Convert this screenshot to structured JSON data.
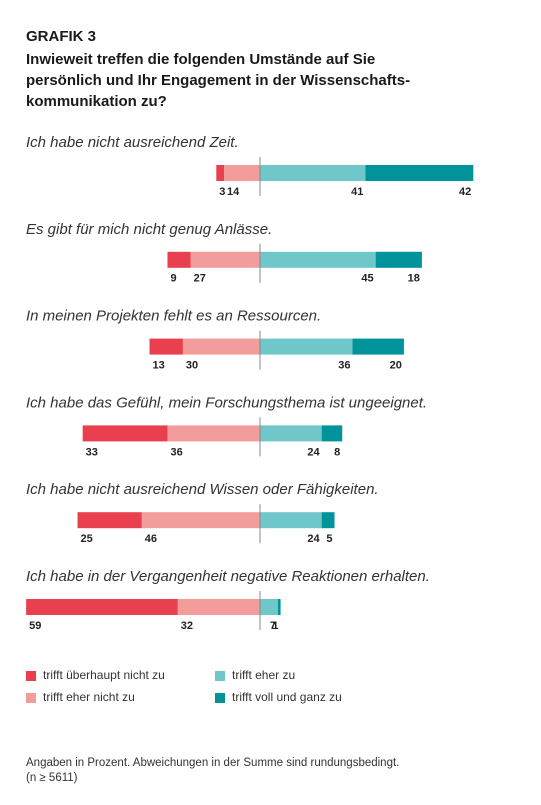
{
  "chart_data": {
    "type": "diverging_bar",
    "label": "GRAFIK 3",
    "title_lines": [
      "Inwieweit treffen die folgenden Umstände auf Sie",
      "persönlich und Ihr Engagement in der Wissenschafts-",
      "kommunikation zu?"
    ],
    "categories": [
      "Ich habe nicht ausreichend Zeit.",
      "Es gibt für mich nicht genug Anlässe.",
      "In meinen Projekten fehlt es an Ressourcen.",
      "Ich habe das Gefühl, mein Forschungsthema ist ungeeignet.",
      "Ich habe nicht ausreichend Wissen oder Fähigkeiten.",
      "Ich habe in der Vergangenheit negative Reaktionen erhalten."
    ],
    "series": [
      {
        "name": "trifft überhaupt nicht zu",
        "color": "#e8404f",
        "side": "negative",
        "values": [
          3,
          9,
          13,
          33,
          25,
          59
        ]
      },
      {
        "name": "trifft eher nicht zu",
        "color": "#f39c9c",
        "side": "negative",
        "values": [
          14,
          27,
          30,
          36,
          46,
          32
        ]
      },
      {
        "name": "trifft eher zu",
        "color": "#6fc7ca",
        "side": "positive",
        "values": [
          41,
          45,
          36,
          24,
          24,
          7
        ]
      },
      {
        "name": "trifft voll und ganz zu",
        "color": "#00939a",
        "side": "positive",
        "values": [
          42,
          18,
          20,
          8,
          5,
          1
        ]
      }
    ],
    "note_lines": [
      "Angaben in Prozent. Abweichungen in der Summe sind rundungsbedingt.",
      "(n ≥ 5611)"
    ]
  }
}
